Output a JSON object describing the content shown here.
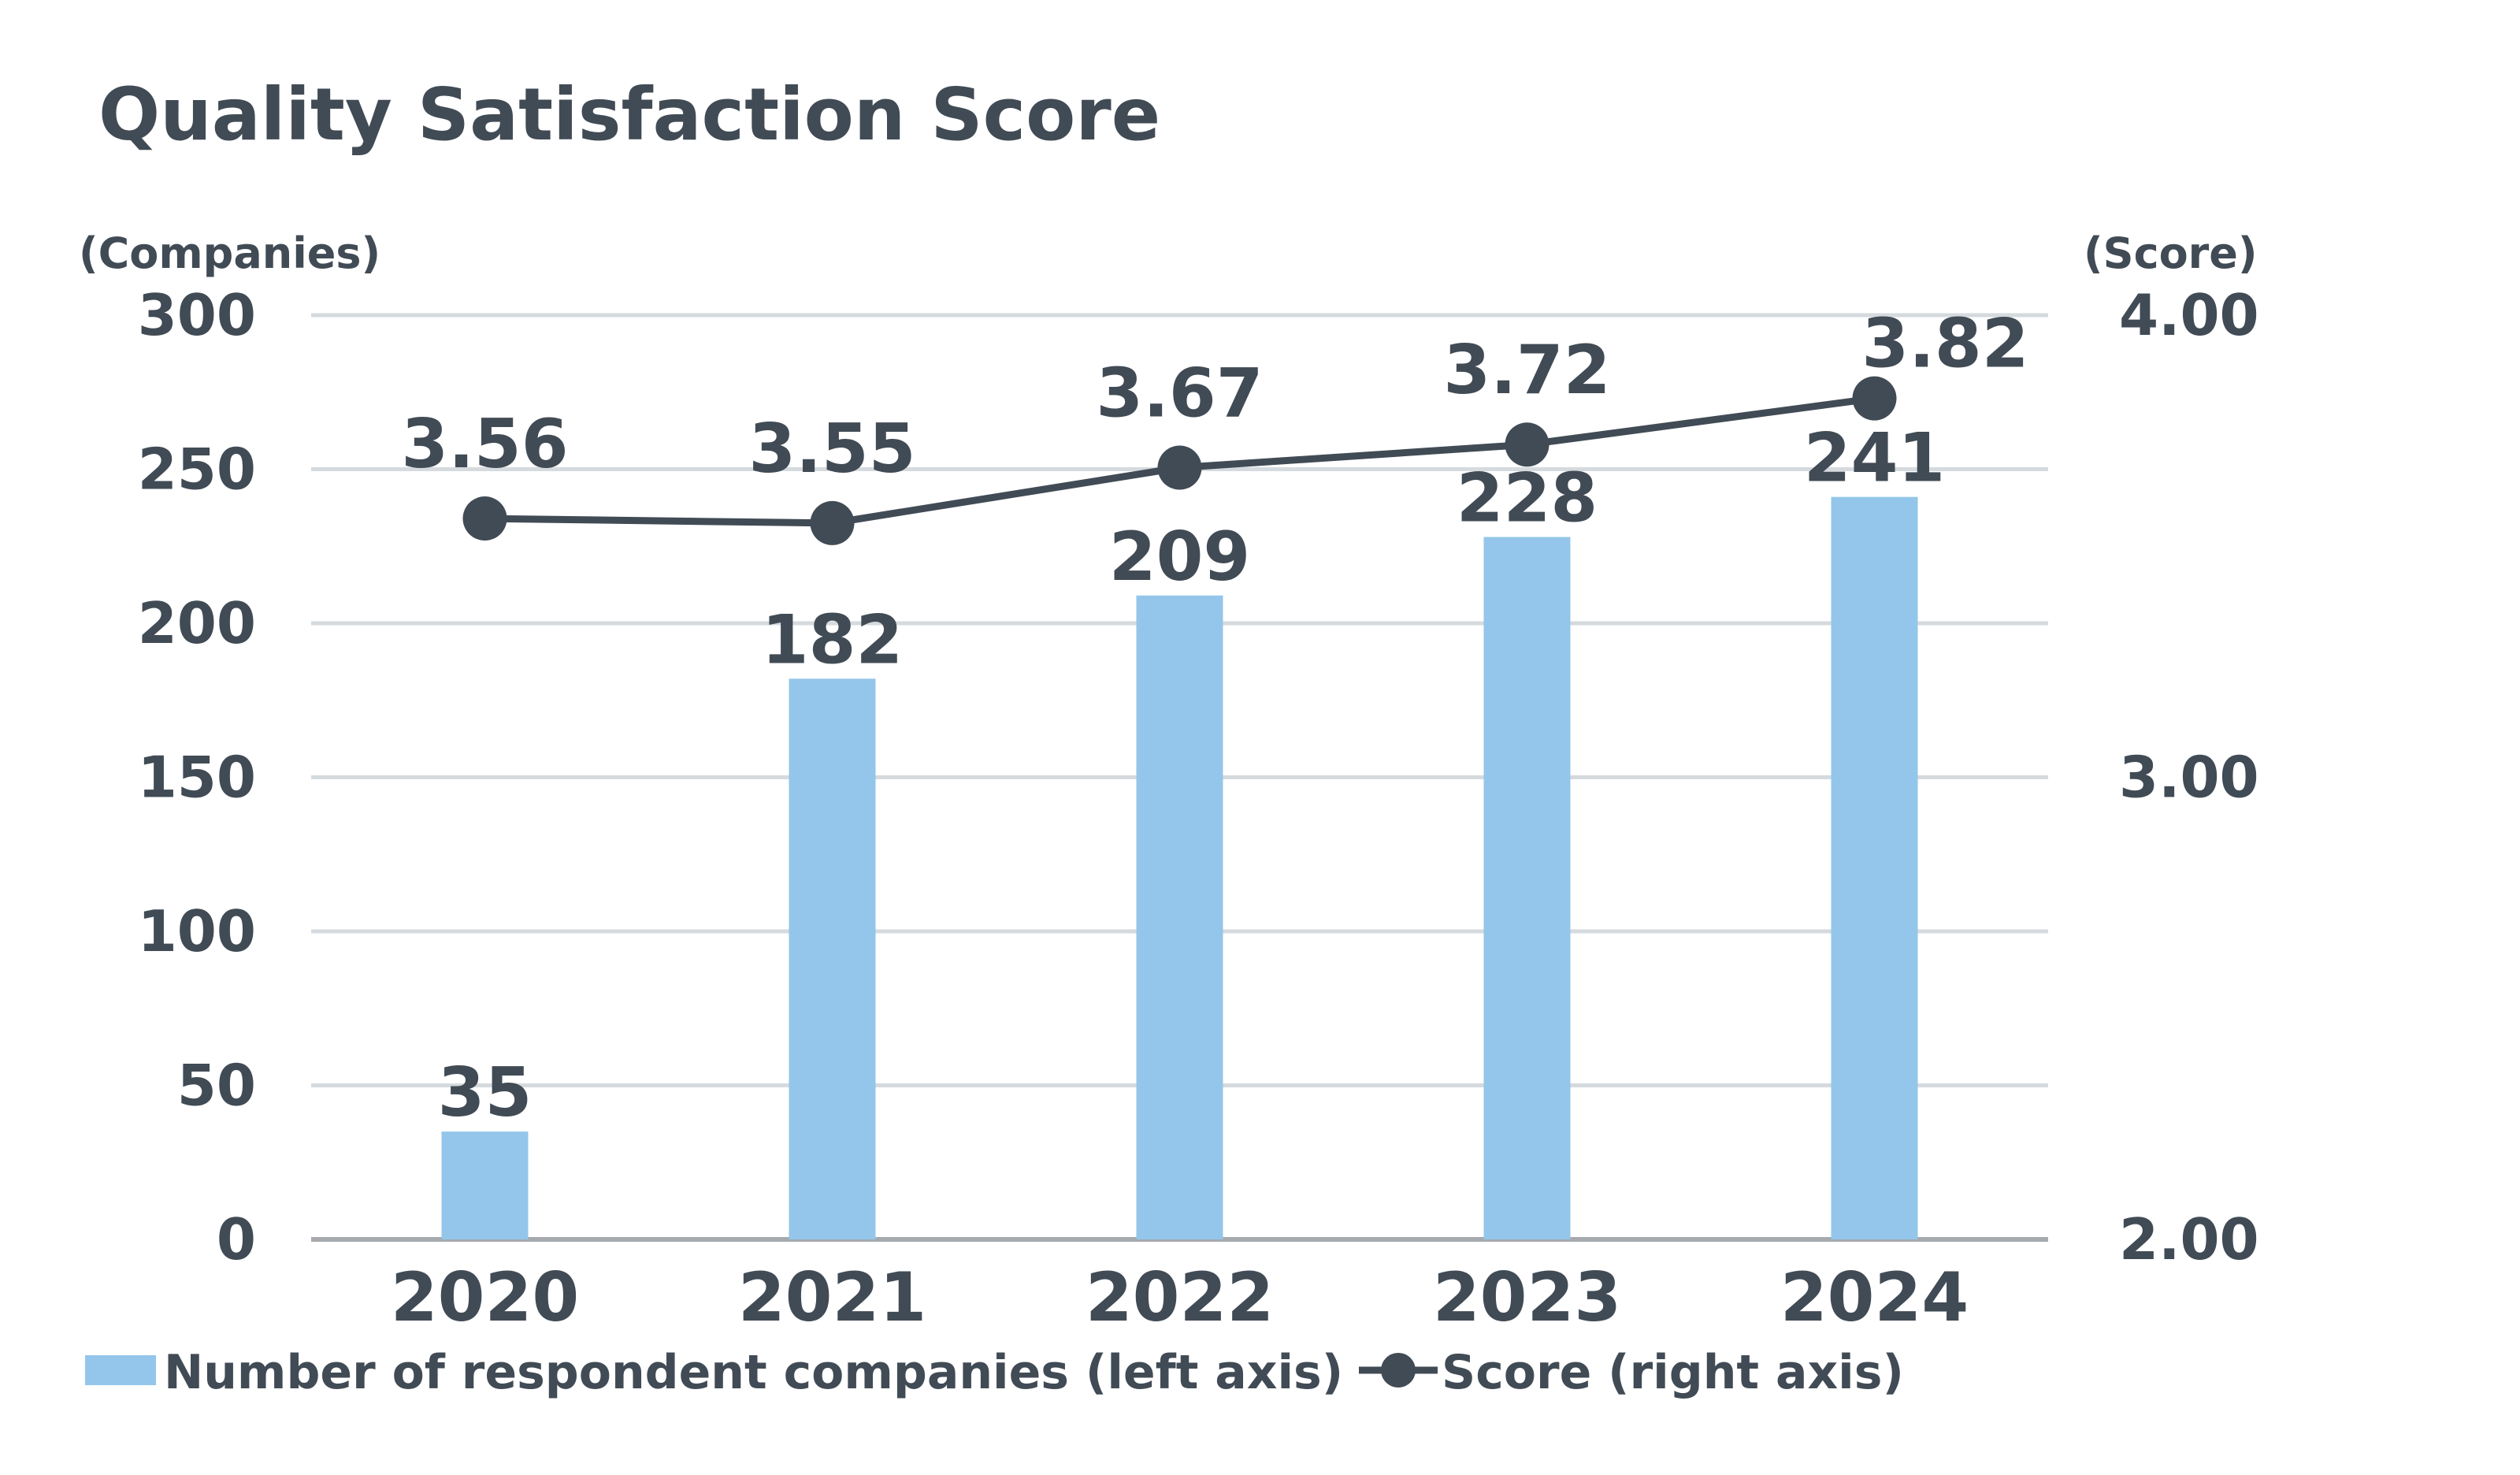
{
  "chart_data": {
    "type": "bar+line",
    "title": "Quality Satisfaction Score",
    "categories": [
      "2020",
      "2021",
      "2022",
      "2023",
      "2024"
    ],
    "series": [
      {
        "name": "Number of respondent companies (left axis)",
        "type": "bar",
        "axis": "left",
        "values": [
          35,
          182,
          209,
          228,
          241
        ],
        "labels": [
          "35",
          "182",
          "209",
          "228",
          "241"
        ],
        "color": "#93c6ea"
      },
      {
        "name": "Score (right axis)",
        "type": "line",
        "axis": "right",
        "values": [
          3.56,
          3.55,
          3.67,
          3.72,
          3.82
        ],
        "labels": [
          "3.56",
          "3.55",
          "3.67",
          "3.72",
          "3.82"
        ],
        "color": "#414b55"
      }
    ],
    "left_axis": {
      "unit_label": "(Companies)",
      "range": [
        0,
        300
      ],
      "ticks": [
        0,
        50,
        100,
        150,
        200,
        250,
        300
      ],
      "tick_labels": [
        "0",
        "50",
        "100",
        "150",
        "200",
        "250",
        "300"
      ]
    },
    "right_axis": {
      "unit_label": "(Score)",
      "range": [
        2.0,
        4.0
      ],
      "ticks": [
        2.0,
        3.0,
        4.0
      ],
      "tick_labels": [
        "2.00",
        "3.00",
        "4.00"
      ]
    },
    "grid": true,
    "legend_position": "bottom-left"
  },
  "colors": {
    "text": "#414b55",
    "bar": "#93c6ea",
    "line": "#414b55",
    "grid": "#d5dade",
    "axis": "#a6aaae"
  }
}
